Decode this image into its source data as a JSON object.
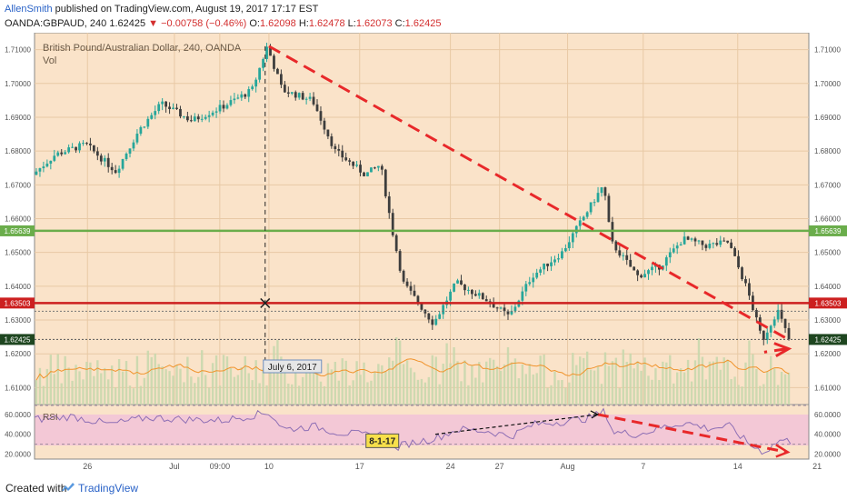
{
  "header": {
    "author": "AllenSmith",
    "published": "published on TradingView.com, August 19, 2017 17:17 EST",
    "symbol_line_prefix": "OANDA:GBPAUD, 240  1.62425",
    "change": "▼ −0.00758 (−0.46%)",
    "o_label": "O:",
    "o_value": "1.62098",
    "h_label": "H:",
    "h_value": "1.62478",
    "l_label": "L:",
    "l_value": "1.62073",
    "c_label": "C:",
    "c_value": "1.62425"
  },
  "legend": {
    "title": "British Pound/Australian Dollar, 240, OANDA",
    "vol": "Vol"
  },
  "rsi_label": "RSI",
  "footer": {
    "created": "Created with",
    "brand": "TradingView"
  },
  "colors": {
    "background": "#fae3c9",
    "rsi_band": "#f3c8d6",
    "up": "#26a69a",
    "down": "#3d3d3d",
    "support": "#6aad4b",
    "resistance": "#cc1f1f",
    "trend": "#e8282a",
    "volume": "#c8d7ad"
  },
  "chart_data": {
    "type": "candlestick",
    "title": "British Pound/Australian Dollar, 240, OANDA",
    "x_ticks": [
      "26",
      "Jul",
      "09:00",
      "10",
      "17",
      "24",
      "27",
      "Aug",
      "7",
      "14",
      "21"
    ],
    "y_ticks": [
      "1.71000",
      "1.70000",
      "1.69000",
      "1.68000",
      "1.67000",
      "1.66000",
      "1.65000",
      "1.64000",
      "1.63000",
      "1.62000",
      "1.61000"
    ],
    "ylim": [
      1.605,
      1.715
    ],
    "price_path": [
      {
        "x": 0.0,
        "y": 1.673
      },
      {
        "x": 0.03,
        "y": 1.679
      },
      {
        "x": 0.07,
        "y": 1.682
      },
      {
        "x": 0.11,
        "y": 1.674
      },
      {
        "x": 0.14,
        "y": 1.686
      },
      {
        "x": 0.17,
        "y": 1.694
      },
      {
        "x": 0.21,
        "y": 1.689
      },
      {
        "x": 0.25,
        "y": 1.693
      },
      {
        "x": 0.29,
        "y": 1.698
      },
      {
        "x": 0.31,
        "y": 1.711
      },
      {
        "x": 0.33,
        "y": 1.698
      },
      {
        "x": 0.37,
        "y": 1.695
      },
      {
        "x": 0.4,
        "y": 1.68
      },
      {
        "x": 0.44,
        "y": 1.673
      },
      {
        "x": 0.46,
        "y": 1.676
      },
      {
        "x": 0.475,
        "y": 1.657
      },
      {
        "x": 0.49,
        "y": 1.641
      },
      {
        "x": 0.53,
        "y": 1.629
      },
      {
        "x": 0.56,
        "y": 1.641
      },
      {
        "x": 0.6,
        "y": 1.636
      },
      {
        "x": 0.63,
        "y": 1.631
      },
      {
        "x": 0.66,
        "y": 1.643
      },
      {
        "x": 0.7,
        "y": 1.65
      },
      {
        "x": 0.73,
        "y": 1.661
      },
      {
        "x": 0.755,
        "y": 1.67
      },
      {
        "x": 0.765,
        "y": 1.653
      },
      {
        "x": 0.8,
        "y": 1.643
      },
      {
        "x": 0.83,
        "y": 1.646
      },
      {
        "x": 0.86,
        "y": 1.654
      },
      {
        "x": 0.89,
        "y": 1.652
      },
      {
        "x": 0.92,
        "y": 1.653
      },
      {
        "x": 0.945,
        "y": 1.639
      },
      {
        "x": 0.965,
        "y": 1.624
      },
      {
        "x": 0.985,
        "y": 1.633
      },
      {
        "x": 1.0,
        "y": 1.62425
      }
    ],
    "horizontal_lines": [
      {
        "name": "support",
        "value": 1.65639,
        "label": "1.65639",
        "color": "#6aad4b"
      },
      {
        "name": "resistance",
        "value": 1.63503,
        "label": "1.63503",
        "color": "#cc1f1f"
      },
      {
        "name": "current",
        "value": 1.62425,
        "label": "1.62425",
        "color": "#1e4620"
      }
    ],
    "trendlines": [
      {
        "from": {
          "x": 0.31,
          "y": 1.711
        },
        "to": {
          "x": 0.995,
          "y": 1.6245
        }
      },
      {
        "from": {
          "x": 0.995,
          "y": 1.6215
        },
        "to": {
          "x": 0.965,
          "y": 1.6205
        }
      }
    ],
    "annotation": {
      "text": "July 6, 2017",
      "x": 0.305
    },
    "rsi": {
      "label": "RSI",
      "y_ticks": [
        "60.0000",
        "40.0000",
        "20.0000"
      ],
      "ylim": [
        15,
        70
      ],
      "path": [
        {
          "x": 0.0,
          "y": 55
        },
        {
          "x": 0.05,
          "y": 58
        },
        {
          "x": 0.1,
          "y": 50
        },
        {
          "x": 0.15,
          "y": 57
        },
        {
          "x": 0.2,
          "y": 55
        },
        {
          "x": 0.25,
          "y": 54
        },
        {
          "x": 0.28,
          "y": 58
        },
        {
          "x": 0.31,
          "y": 62
        },
        {
          "x": 0.33,
          "y": 45
        },
        {
          "x": 0.37,
          "y": 48
        },
        {
          "x": 0.4,
          "y": 42
        },
        {
          "x": 0.44,
          "y": 39
        },
        {
          "x": 0.46,
          "y": 40
        },
        {
          "x": 0.475,
          "y": 25
        },
        {
          "x": 0.49,
          "y": 30
        },
        {
          "x": 0.53,
          "y": 36
        },
        {
          "x": 0.56,
          "y": 45
        },
        {
          "x": 0.6,
          "y": 43
        },
        {
          "x": 0.63,
          "y": 38
        },
        {
          "x": 0.66,
          "y": 50
        },
        {
          "x": 0.7,
          "y": 53
        },
        {
          "x": 0.73,
          "y": 56
        },
        {
          "x": 0.755,
          "y": 63
        },
        {
          "x": 0.765,
          "y": 42
        },
        {
          "x": 0.8,
          "y": 40
        },
        {
          "x": 0.83,
          "y": 47
        },
        {
          "x": 0.86,
          "y": 52
        },
        {
          "x": 0.89,
          "y": 46
        },
        {
          "x": 0.92,
          "y": 48
        },
        {
          "x": 0.945,
          "y": 30
        },
        {
          "x": 0.965,
          "y": 22
        },
        {
          "x": 0.985,
          "y": 34
        },
        {
          "x": 1.0,
          "y": 33
        }
      ],
      "label_box": "8-1-17",
      "trendlines": [
        {
          "style": "black-dashed",
          "from": {
            "x": 0.53,
            "y": 40
          },
          "to": {
            "x": 0.745,
            "y": 60
          }
        },
        {
          "style": "red-dashed",
          "from": {
            "x": 0.745,
            "y": 60
          },
          "to": {
            "x": 0.995,
            "y": 22
          }
        }
      ]
    }
  }
}
